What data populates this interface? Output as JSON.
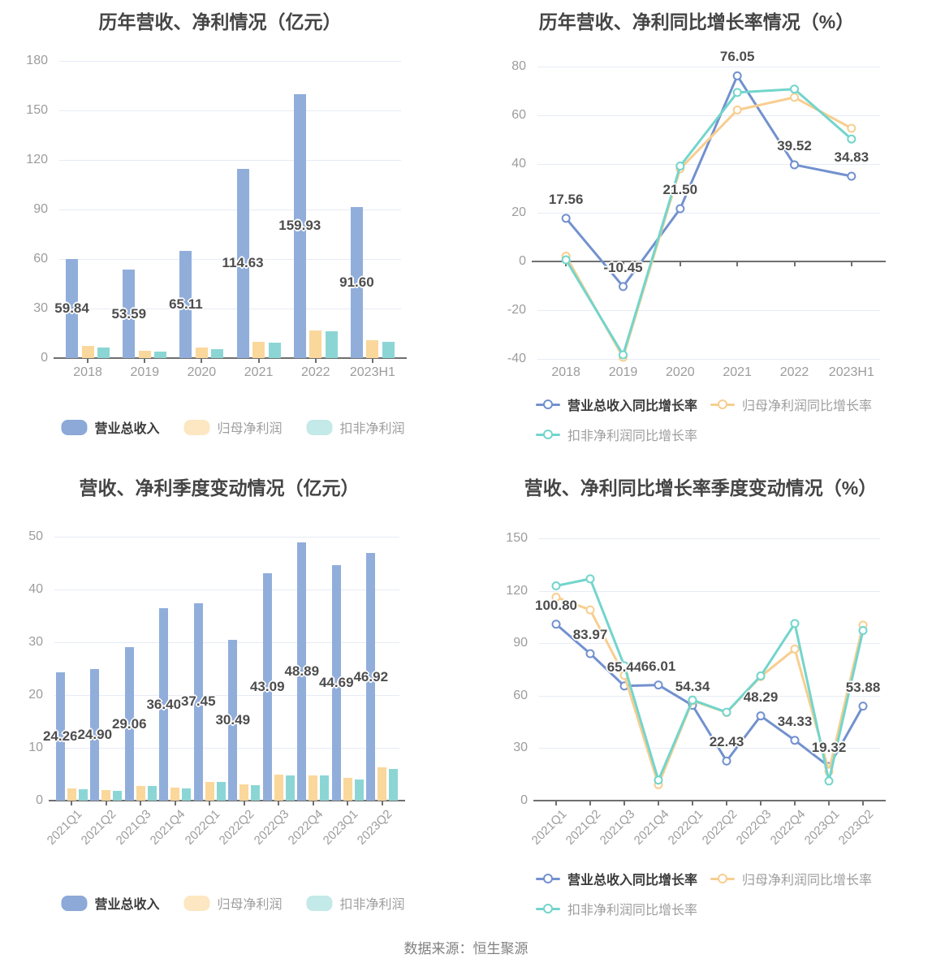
{
  "page": {
    "footer_source": "数据来源：恒生聚源"
  },
  "palette": {
    "bar_blue": "#91AEDB",
    "bar_yellow": "#FAD79B",
    "bar_teal": "#8BD6D5",
    "line_blue": "#7291CE",
    "line_yellow": "#F7CE90",
    "line_teal": "#72D5CC",
    "legend_blue": "#8CA9D7",
    "legend_yellow": "#FCE7C2",
    "legend_teal": "#C3E9E8",
    "title_text": "#454545",
    "axis_text": "#9C9C9C",
    "value_text": "#4D4D4D",
    "grid_line": "#E6EBF5",
    "axis_line": "#6F6F6F",
    "footer_text": "#808080"
  },
  "chart_data": [
    {
      "id": "annual-revenue-profit",
      "type": "bar",
      "title": "历年营收、净利情况（亿元）",
      "categories": [
        "2018",
        "2019",
        "2020",
        "2021",
        "2022",
        "2023H1"
      ],
      "ylim": [
        0,
        180
      ],
      "y_ticks": [
        0,
        30,
        60,
        90,
        120,
        150,
        180
      ],
      "grid": true,
      "legend_position": "bottom",
      "series": [
        {
          "key": "total-revenue",
          "name": "营业总收入",
          "color": "#91AEDB",
          "legend_color": "#8CA9D7",
          "values": [
            59.84,
            53.59,
            65.11,
            114.63,
            159.93,
            91.6
          ],
          "value_labels": [
            "59.84",
            "53.59",
            "65.11",
            "114.63",
            "159.93",
            "91.60"
          ]
        },
        {
          "key": "net-profit-attributable",
          "name": "归母净利润",
          "color": "#FAD79B",
          "legend_color": "#FCE7C2",
          "values": [
            7.2,
            4.5,
            6.2,
            9.6,
            16.8,
            10.7
          ]
        },
        {
          "key": "net-profit-deducted",
          "name": "扣非净利润",
          "color": "#8BD6D5",
          "legend_color": "#C3E9E8",
          "values": [
            6.6,
            4.1,
            5.5,
            9.3,
            16.2,
            9.8
          ]
        }
      ]
    },
    {
      "id": "annual-growth-rate",
      "type": "line",
      "title": "历年营收、净利同比增长率情况（%）",
      "categories": [
        "2018",
        "2019",
        "2020",
        "2021",
        "2022",
        "2023H1"
      ],
      "ylim": [
        -40,
        80
      ],
      "y_ticks": [
        -40,
        -20,
        0,
        20,
        40,
        60,
        80
      ],
      "grid": true,
      "legend_position": "bottom",
      "series": [
        {
          "key": "total-revenue-yoy-growth",
          "name": "营业总收入同比增长率",
          "color": "#7291CE",
          "values": [
            17.56,
            -10.45,
            21.5,
            76.05,
            39.52,
            34.83
          ],
          "value_labels": [
            "17.56",
            "-10.45",
            "21.50",
            "76.05",
            "39.52",
            "34.83"
          ]
        },
        {
          "key": "net-profit-attributable-yoy-growth",
          "name": "归母净利润同比增长率",
          "color": "#F7CE90",
          "values": [
            2.0,
            -39.5,
            37.9,
            62.0,
            67.2,
            54.5
          ]
        },
        {
          "key": "net-profit-deducted-yoy-growth",
          "name": "扣非净利润同比增长率",
          "color": "#72D5CC",
          "values": [
            0.5,
            -38.5,
            39.0,
            69.2,
            70.6,
            50.1
          ]
        }
      ]
    },
    {
      "id": "quarterly-revenue-profit",
      "type": "bar",
      "title": "营收、净利季度变动情况（亿元）",
      "categories": [
        "2021Q1",
        "2021Q2",
        "2021Q3",
        "2021Q4",
        "2022Q1",
        "2022Q2",
        "2022Q3",
        "2022Q4",
        "2023Q1",
        "2023Q2"
      ],
      "ylim": [
        0,
        50
      ],
      "y_ticks": [
        0,
        10,
        20,
        30,
        40,
        50
      ],
      "grid": true,
      "legend_position": "bottom",
      "x_rotate": 45,
      "series": [
        {
          "key": "total-revenue",
          "name": "营业总收入",
          "color": "#91AEDB",
          "legend_color": "#8CA9D7",
          "values": [
            24.26,
            24.9,
            29.06,
            36.4,
            37.45,
            30.49,
            43.09,
            48.89,
            44.69,
            46.92
          ],
          "value_labels": [
            "24.26",
            "24.90",
            "29.06",
            "36.40",
            "37.45",
            "30.49",
            "43.09",
            "48.89",
            "44.69",
            "46.92"
          ]
        },
        {
          "key": "net-profit-attributable",
          "name": "归母净利润",
          "color": "#FAD79B",
          "legend_color": "#FCE7C2",
          "values": [
            2.3,
            2.0,
            2.7,
            2.4,
            3.6,
            3.1,
            4.9,
            4.8,
            4.3,
            6.3
          ]
        },
        {
          "key": "net-profit-deducted",
          "name": "扣非净利润",
          "color": "#8BD6D5",
          "legend_color": "#C3E9E8",
          "values": [
            2.2,
            1.9,
            2.7,
            2.3,
            3.5,
            3.0,
            4.8,
            4.7,
            4.0,
            6.0
          ]
        }
      ]
    },
    {
      "id": "quarterly-growth-rate",
      "type": "line",
      "title": "营收、净利同比增长率季度变动情况（%）",
      "categories": [
        "2021Q1",
        "2021Q2",
        "2021Q3",
        "2021Q4",
        "2022Q1",
        "2022Q2",
        "2022Q3",
        "2022Q4",
        "2023Q1",
        "2023Q2"
      ],
      "ylim": [
        0,
        150
      ],
      "y_ticks": [
        0,
        30,
        60,
        90,
        120,
        150
      ],
      "grid": true,
      "legend_position": "bottom",
      "x_rotate": 45,
      "series": [
        {
          "key": "total-revenue-yoy-growth",
          "name": "营业总收入同比增长率",
          "color": "#7291CE",
          "values": [
            100.8,
            83.97,
            65.44,
            66.01,
            54.34,
            22.43,
            48.29,
            34.33,
            19.32,
            53.88
          ],
          "value_labels": [
            "100.80",
            "83.97",
            "65.44",
            "66.01",
            "54.34",
            "22.43",
            "48.29",
            "34.33",
            "19.32",
            "53.88"
          ]
        },
        {
          "key": "net-profit-attributable-yoy-growth",
          "name": "归母净利润同比增长率",
          "color": "#F7CE90",
          "values": [
            116.3,
            109.0,
            71.5,
            8.9,
            57.0,
            50.2,
            70.8,
            86.6,
            16.5,
            100.3
          ]
        },
        {
          "key": "net-profit-deducted-yoy-growth",
          "name": "扣非净利润同比增长率",
          "color": "#72D5CC",
          "values": [
            122.8,
            126.8,
            77.0,
            11.5,
            57.4,
            50.4,
            71.2,
            101.2,
            11.0,
            97.2
          ]
        }
      ]
    }
  ]
}
